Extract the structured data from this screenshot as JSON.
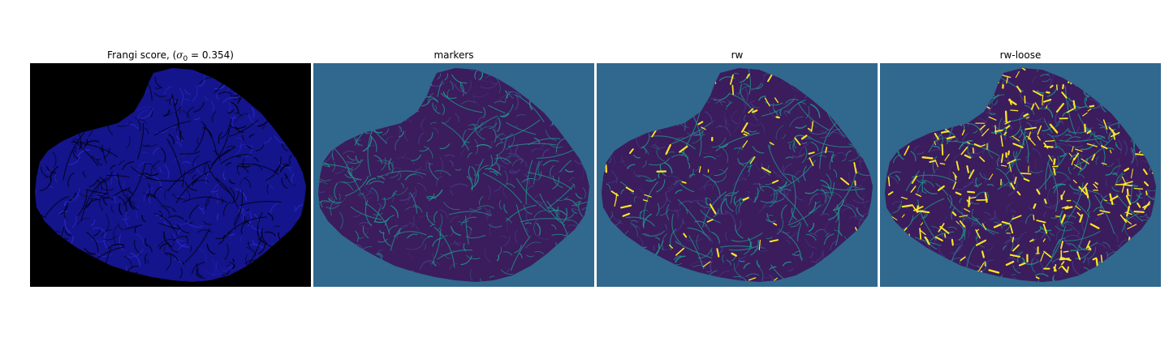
{
  "figure": {
    "panels": [
      {
        "id": "frangi",
        "title_prefix": "Frangi score, (",
        "title_symbol": "σ",
        "title_subscript": "0",
        "title_suffix": " = 0.354)",
        "background_color": "#000000",
        "blob_color": "#14148c",
        "vessel_color": "#000010",
        "accent_color": "#2828c8",
        "highlight_color": null,
        "highlight_density": 0
      },
      {
        "id": "markers",
        "title": "markers",
        "background_color": "#31688e",
        "blob_color": "#3b1c5c",
        "vessel_color": "#21918c",
        "accent_color": "#443a83",
        "highlight_color": null,
        "highlight_density": 0
      },
      {
        "id": "rw",
        "title": "rw",
        "background_color": "#31688e",
        "blob_color": "#3b1c5c",
        "vessel_color": "#21918c",
        "accent_color": "#443a83",
        "highlight_color": "#fde725",
        "highlight_density": 0.25
      },
      {
        "id": "rw-loose",
        "title": "rw-loose",
        "background_color": "#31688e",
        "blob_color": "#3b1c5c",
        "vessel_color": "#21918c",
        "accent_color": "#443a83",
        "highlight_color": "#fde725",
        "highlight_density": 1.0
      }
    ]
  }
}
